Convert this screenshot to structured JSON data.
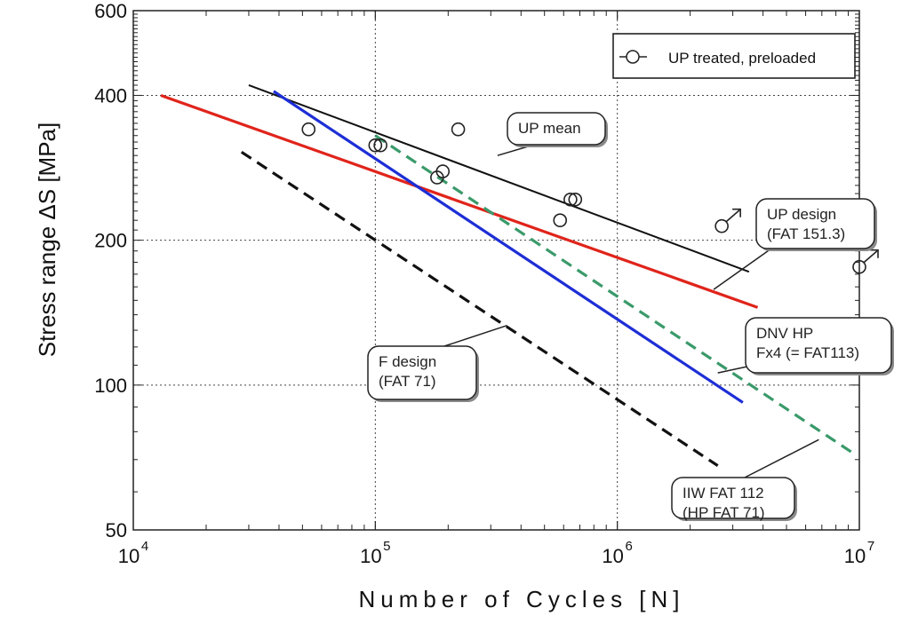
{
  "chart_data": {
    "type": "line",
    "xlabel": "Number of Cycles [N]",
    "ylabel": "Stress range  ΔS [MPa]",
    "x_scale": "log",
    "y_scale": "log",
    "xlim": [
      10000,
      10000000
    ],
    "ylim": [
      50,
      600
    ],
    "x_ticks": [
      {
        "base": "10",
        "exp": "4",
        "value": 10000
      },
      {
        "base": "10",
        "exp": "5",
        "value": 100000
      },
      {
        "base": "10",
        "exp": "6",
        "value": 1000000
      },
      {
        "base": "10",
        "exp": "7",
        "value": 10000000
      }
    ],
    "y_ticks": [
      {
        "label": "50",
        "value": 50
      },
      {
        "label": "100",
        "value": 100
      },
      {
        "label": "200",
        "value": 200
      },
      {
        "label": "400",
        "value": 400
      },
      {
        "label": "600",
        "value": 600
      }
    ],
    "grid": true,
    "legend_position": "top-right",
    "legend": [
      {
        "label": "UP treated, preloaded",
        "marker": "open-circle"
      }
    ],
    "series": [
      {
        "name": "UP mean",
        "color": "#111111",
        "style": "solid",
        "x": [
          30000,
          3500000
        ],
        "y": [
          420,
          172
        ]
      },
      {
        "name": "UP design (FAT 151.3)",
        "color": "#e0241b",
        "style": "solid",
        "x": [
          13000,
          3800000
        ],
        "y": [
          400,
          145
        ]
      },
      {
        "name": "DNV HP Fx4 (= FAT113)",
        "color": "#1d2ed6",
        "style": "solid",
        "x": [
          38000,
          3300000
        ],
        "y": [
          408,
          92
        ]
      },
      {
        "name": "IIW FAT 112 (HP FAT 71)",
        "color": "#3a9a6a",
        "style": "dashed",
        "x": [
          100000,
          9500000
        ],
        "y": [
          330,
          72
        ]
      },
      {
        "name": "F design (FAT 71)",
        "color": "#111111",
        "style": "dashed",
        "x": [
          28000,
          2600000
        ],
        "y": [
          305,
          68
        ]
      }
    ],
    "points": {
      "name": "UP treated, preloaded",
      "marker": "open-circle",
      "data": [
        {
          "x": 53000,
          "y": 340
        },
        {
          "x": 100000,
          "y": 315
        },
        {
          "x": 105000,
          "y": 315
        },
        {
          "x": 180000,
          "y": 270
        },
        {
          "x": 190000,
          "y": 278
        },
        {
          "x": 220000,
          "y": 340
        },
        {
          "x": 580000,
          "y": 220
        },
        {
          "x": 640000,
          "y": 243
        },
        {
          "x": 670000,
          "y": 243
        },
        {
          "x": 2700000,
          "y": 214,
          "runout": true
        },
        {
          "x": 10000000,
          "y": 176,
          "runout": true
        }
      ]
    },
    "annotations": [
      {
        "lines": [
          "UP mean"
        ],
        "target": [
          320000,
          300
        ]
      },
      {
        "lines": [
          "UP design",
          "(FAT 151.3)"
        ],
        "target": [
          2500000,
          158
        ]
      },
      {
        "lines": [
          "DNV HP",
          "Fx4 (= FAT113)"
        ],
        "target": [
          2600000,
          106
        ]
      },
      {
        "lines": [
          "F design",
          "(FAT 71)"
        ],
        "target": [
          350000,
          133
        ]
      },
      {
        "lines": [
          "IIW FAT 112",
          "(HP FAT 71)"
        ],
        "target": [
          6800000,
          77
        ]
      }
    ]
  }
}
